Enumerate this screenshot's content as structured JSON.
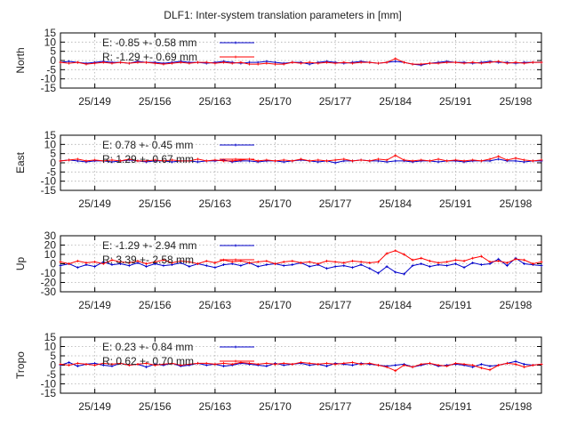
{
  "title": "DLF1: Inter-system translation parameters in [mm]",
  "chart_data": [
    {
      "type": "line",
      "ylabel": "North",
      "ylim": [
        -15,
        15
      ],
      "yticks": [
        "15",
        "10",
        "5",
        "0",
        "-5",
        "-10",
        "-15"
      ],
      "ytick_values": [
        15,
        10,
        5,
        0,
        -5,
        -10,
        -15
      ],
      "xlim": [
        145,
        201
      ],
      "xticks": [
        "25/149",
        "25/156",
        "25/163",
        "25/170",
        "25/177",
        "25/184",
        "25/191",
        "25/198"
      ],
      "xtick_values": [
        149,
        156,
        163,
        170,
        177,
        184,
        191,
        198
      ],
      "grid": true,
      "legend_position": "top-left",
      "series": [
        {
          "name": "E:  -0.85 +- 0.58 mm",
          "color": "#0000cc",
          "marker": "+",
          "x": [
            145,
            146,
            147,
            148,
            149,
            150,
            151,
            152,
            153,
            154,
            155,
            156,
            157,
            158,
            159,
            160,
            161,
            162,
            163,
            164,
            165,
            166,
            167,
            168,
            169,
            170,
            171,
            172,
            173,
            174,
            175,
            176,
            177,
            178,
            179,
            180,
            181,
            182,
            183,
            184,
            185,
            186,
            187,
            188,
            189,
            190,
            191,
            192,
            193,
            194,
            195,
            196,
            197,
            198,
            199,
            200,
            201
          ],
          "y": [
            -1,
            -0.5,
            -1,
            -1.5,
            -1,
            -0.5,
            -1,
            -1,
            -1.5,
            -0.5,
            -1,
            -1,
            -1.5,
            -1,
            -0.5,
            -1,
            -1,
            -1.5,
            -1,
            -0.5,
            -1,
            -1.5,
            -1,
            -1,
            -0.5,
            -1,
            -1.5,
            -1,
            -1,
            -2,
            -1,
            -0.5,
            -1,
            -1.5,
            -1,
            -0.5,
            -1,
            -1.5,
            -1,
            -0.5,
            -1,
            -2,
            -2.5,
            -1.5,
            -1,
            -0.5,
            -1,
            -1,
            -1.5,
            -1,
            -0.5,
            -1,
            -1,
            -1.5,
            -1,
            -1,
            -1
          ]
        },
        {
          "name": "R:  -1.29 +- 0.69 mm",
          "color": "#ff0000",
          "marker": "+",
          "x": [
            145,
            146,
            147,
            148,
            149,
            150,
            151,
            152,
            153,
            154,
            155,
            156,
            157,
            158,
            159,
            160,
            161,
            162,
            163,
            164,
            165,
            166,
            167,
            168,
            169,
            170,
            171,
            172,
            173,
            174,
            175,
            176,
            177,
            178,
            179,
            180,
            181,
            182,
            183,
            184,
            185,
            186,
            187,
            188,
            189,
            190,
            191,
            192,
            193,
            194,
            195,
            196,
            197,
            198,
            199,
            200,
            201
          ],
          "y": [
            -1,
            -1.5,
            -1,
            -2,
            -1.5,
            -1,
            -1.5,
            -1,
            -1.5,
            -1,
            -1,
            -1.5,
            -2,
            -1.5,
            -1,
            -1.5,
            -1,
            -1,
            -1.5,
            -1,
            -1.5,
            -1,
            -2,
            -2,
            -1.5,
            -2,
            -2,
            -1,
            -1.5,
            -1,
            -1.5,
            -1,
            -1.5,
            -1,
            -1.5,
            -1,
            -1,
            -1.5,
            -1,
            1,
            -1,
            -2,
            -2,
            -1.5,
            -1.5,
            -1,
            -1,
            -1.5,
            -1,
            -1.5,
            -1,
            -0.5,
            -1.5,
            -1,
            -1.5,
            -1,
            -1
          ]
        }
      ]
    },
    {
      "type": "line",
      "ylabel": "East",
      "ylim": [
        -15,
        15
      ],
      "yticks": [
        "15",
        "10",
        "5",
        "0",
        "-5",
        "-10",
        "-15"
      ],
      "ytick_values": [
        15,
        10,
        5,
        0,
        -5,
        -10,
        -15
      ],
      "xlim": [
        145,
        201
      ],
      "xticks": [
        "25/149",
        "25/156",
        "25/163",
        "25/170",
        "25/177",
        "25/184",
        "25/191",
        "25/198"
      ],
      "xtick_values": [
        149,
        156,
        163,
        170,
        177,
        184,
        191,
        198
      ],
      "grid": true,
      "legend_position": "top-left",
      "series": [
        {
          "name": "E:   0.78 +- 0.45 mm",
          "color": "#0000cc",
          "marker": "+",
          "x": [
            145,
            146,
            147,
            148,
            149,
            150,
            151,
            152,
            153,
            154,
            155,
            156,
            157,
            158,
            159,
            160,
            161,
            162,
            163,
            164,
            165,
            166,
            167,
            168,
            169,
            170,
            171,
            172,
            173,
            174,
            175,
            176,
            177,
            178,
            179,
            180,
            181,
            182,
            183,
            184,
            185,
            186,
            187,
            188,
            189,
            190,
            191,
            192,
            193,
            194,
            195,
            196,
            197,
            198,
            199,
            200,
            201
          ],
          "y": [
            1,
            1.5,
            1,
            0.5,
            1,
            1,
            0.5,
            1,
            1.5,
            1,
            0.5,
            1,
            1,
            0.5,
            1,
            1,
            0.5,
            1,
            1,
            1.5,
            0.5,
            1,
            1,
            0.5,
            1,
            1,
            0.5,
            1,
            1.5,
            1,
            0.5,
            1,
            0,
            1,
            1,
            1.5,
            1,
            1,
            0.5,
            1,
            1,
            0.5,
            1,
            1,
            0.5,
            1,
            1,
            0.5,
            1,
            1,
            1,
            2,
            1,
            1,
            0.5,
            1,
            1
          ]
        },
        {
          "name": "R:   1.29 +- 0.67 mm",
          "color": "#ff0000",
          "marker": "+",
          "x": [
            145,
            146,
            147,
            148,
            149,
            150,
            151,
            152,
            153,
            154,
            155,
            156,
            157,
            158,
            159,
            160,
            161,
            162,
            163,
            164,
            165,
            166,
            167,
            168,
            169,
            170,
            171,
            172,
            173,
            174,
            175,
            176,
            177,
            178,
            179,
            180,
            181,
            182,
            183,
            184,
            185,
            186,
            187,
            188,
            189,
            190,
            191,
            192,
            193,
            194,
            195,
            196,
            197,
            198,
            199,
            200,
            201
          ],
          "y": [
            1,
            1.5,
            2,
            1,
            1.5,
            1,
            1.5,
            1,
            2,
            1,
            1,
            1.5,
            1,
            1.5,
            1,
            1,
            2,
            1,
            1.5,
            1,
            1,
            1.5,
            2,
            1,
            1.5,
            1,
            1.5,
            1,
            2,
            1,
            1.5,
            1,
            1.5,
            2,
            1,
            1.5,
            1,
            2,
            1.5,
            4,
            1.5,
            1,
            1.5,
            1,
            2,
            1,
            1.5,
            1,
            1.5,
            1,
            2,
            3.5,
            1.5,
            2.5,
            1.5,
            1,
            1.5
          ]
        }
      ]
    },
    {
      "type": "line",
      "ylabel": "Up",
      "ylim": [
        -30,
        30
      ],
      "yticks": [
        "30",
        "20",
        "10",
        "0",
        "-10",
        "-20",
        "-30"
      ],
      "ytick_values": [
        30,
        20,
        10,
        0,
        -10,
        -20,
        -30
      ],
      "xlim": [
        145,
        201
      ],
      "xticks": [
        "25/149",
        "25/156",
        "25/163",
        "25/170",
        "25/177",
        "25/184",
        "25/191",
        "25/198"
      ],
      "xtick_values": [
        149,
        156,
        163,
        170,
        177,
        184,
        191,
        198
      ],
      "grid": true,
      "legend_position": "top-left",
      "series": [
        {
          "name": "E:  -1.29 +- 2.94 mm",
          "color": "#0000cc",
          "marker": "+",
          "x": [
            145,
            146,
            147,
            148,
            149,
            150,
            151,
            152,
            153,
            154,
            155,
            156,
            157,
            158,
            159,
            160,
            161,
            162,
            163,
            164,
            165,
            166,
            167,
            168,
            169,
            170,
            171,
            172,
            173,
            174,
            175,
            176,
            177,
            178,
            179,
            180,
            181,
            182,
            183,
            184,
            185,
            186,
            187,
            188,
            189,
            190,
            191,
            192,
            193,
            194,
            195,
            196,
            197,
            198,
            199,
            200,
            201
          ],
          "y": [
            -2,
            0,
            -4,
            -1,
            -3,
            2,
            -1,
            0,
            -2,
            1,
            -3,
            0,
            -2,
            -1,
            1,
            -3,
            0,
            -2,
            -4,
            -1,
            0,
            -2,
            1,
            -3,
            -1,
            0,
            -2,
            -1,
            1,
            -3,
            -1,
            -5,
            -3,
            -2,
            -4,
            -1,
            -5,
            -10,
            -3,
            -9,
            -11,
            -2,
            0,
            -3,
            -1,
            -2,
            0,
            -4,
            1,
            -1,
            0,
            5,
            -2,
            6,
            0,
            -1,
            -2
          ]
        },
        {
          "name": "R:   3.39 +- 2.58 mm",
          "color": "#ff0000",
          "marker": "+",
          "x": [
            145,
            146,
            147,
            148,
            149,
            150,
            151,
            152,
            153,
            154,
            155,
            156,
            157,
            158,
            159,
            160,
            161,
            162,
            163,
            164,
            165,
            166,
            167,
            168,
            169,
            170,
            171,
            172,
            173,
            174,
            175,
            176,
            177,
            178,
            179,
            180,
            181,
            182,
            183,
            184,
            185,
            186,
            187,
            188,
            189,
            190,
            191,
            192,
            193,
            194,
            195,
            196,
            197,
            198,
            199,
            200,
            201
          ],
          "y": [
            2,
            0,
            3,
            1,
            2,
            0,
            4,
            2,
            1,
            3,
            0,
            2,
            4,
            1,
            3,
            2,
            0,
            3,
            1,
            4,
            2,
            3,
            1,
            2,
            3,
            0,
            2,
            3,
            1,
            2,
            0,
            3,
            2,
            1,
            3,
            2,
            1,
            2,
            11,
            14,
            10,
            4,
            6,
            3,
            1,
            2,
            4,
            3,
            6,
            8,
            2,
            3,
            1,
            5,
            4,
            0,
            2
          ]
        }
      ]
    },
    {
      "type": "line",
      "ylabel": "Tropo",
      "ylim": [
        -15,
        15
      ],
      "yticks": [
        "15",
        "10",
        "5",
        "0",
        "-5",
        "-10",
        "-15"
      ],
      "ytick_values": [
        15,
        10,
        5,
        0,
        -5,
        -10,
        -15
      ],
      "xlim": [
        145,
        201
      ],
      "xticks": [
        "25/149",
        "25/156",
        "25/163",
        "25/170",
        "25/177",
        "25/184",
        "25/191",
        "25/198"
      ],
      "xtick_values": [
        149,
        156,
        163,
        170,
        177,
        184,
        191,
        198
      ],
      "grid": true,
      "legend_position": "top-left",
      "series": [
        {
          "name": "E:   0.23 +- 0.84 mm",
          "color": "#0000cc",
          "marker": "+",
          "x": [
            145,
            146,
            147,
            148,
            149,
            150,
            151,
            152,
            153,
            154,
            155,
            156,
            157,
            158,
            159,
            160,
            161,
            162,
            163,
            164,
            165,
            166,
            167,
            168,
            169,
            170,
            171,
            172,
            173,
            174,
            175,
            176,
            177,
            178,
            179,
            180,
            181,
            182,
            183,
            184,
            185,
            186,
            187,
            188,
            189,
            190,
            191,
            192,
            193,
            194,
            195,
            196,
            197,
            198,
            199,
            200,
            201
          ],
          "y": [
            0,
            1.5,
            -0.5,
            0.5,
            1,
            0,
            -0.5,
            1,
            0,
            0.5,
            -1,
            0.5,
            0,
            1,
            -0.5,
            0,
            1,
            0,
            0.5,
            -0.5,
            0,
            1,
            0.5,
            0,
            -0.5,
            1,
            0,
            0.5,
            1,
            0,
            0.5,
            -0.5,
            1,
            0.5,
            0,
            1,
            0.5,
            0,
            -0.5,
            0,
            0.5,
            -1,
            0,
            1,
            -0.5,
            0,
            0.5,
            0,
            -1,
            0.5,
            -0.5,
            0,
            1,
            2,
            0.5,
            0,
            0.5
          ]
        },
        {
          "name": "R:   0.62 +- 0.70 mm",
          "color": "#ff0000",
          "marker": "+",
          "x": [
            145,
            146,
            147,
            148,
            149,
            150,
            151,
            152,
            153,
            154,
            155,
            156,
            157,
            158,
            159,
            160,
            161,
            162,
            163,
            164,
            165,
            166,
            167,
            168,
            169,
            170,
            171,
            172,
            173,
            174,
            175,
            176,
            177,
            178,
            179,
            180,
            181,
            182,
            183,
            184,
            185,
            186,
            187,
            188,
            189,
            190,
            191,
            192,
            193,
            194,
            195,
            196,
            197,
            198,
            199,
            200,
            201
          ],
          "y": [
            0.5,
            0,
            1,
            0.5,
            0,
            1,
            0.5,
            1,
            0,
            0.5,
            1,
            0,
            0.5,
            1,
            0,
            0.5,
            1,
            1,
            0.5,
            1,
            0.5,
            1.5,
            1,
            0.5,
            1,
            0.5,
            1,
            0.5,
            1.5,
            1,
            0.5,
            1,
            0.5,
            1,
            1.5,
            0.5,
            1,
            0,
            -1,
            -3,
            0,
            -1,
            0.5,
            1,
            0,
            -0.5,
            1,
            0.5,
            0,
            -1.5,
            -2.5,
            0,
            1,
            0.5,
            -1,
            0,
            0.5
          ]
        }
      ]
    }
  ]
}
